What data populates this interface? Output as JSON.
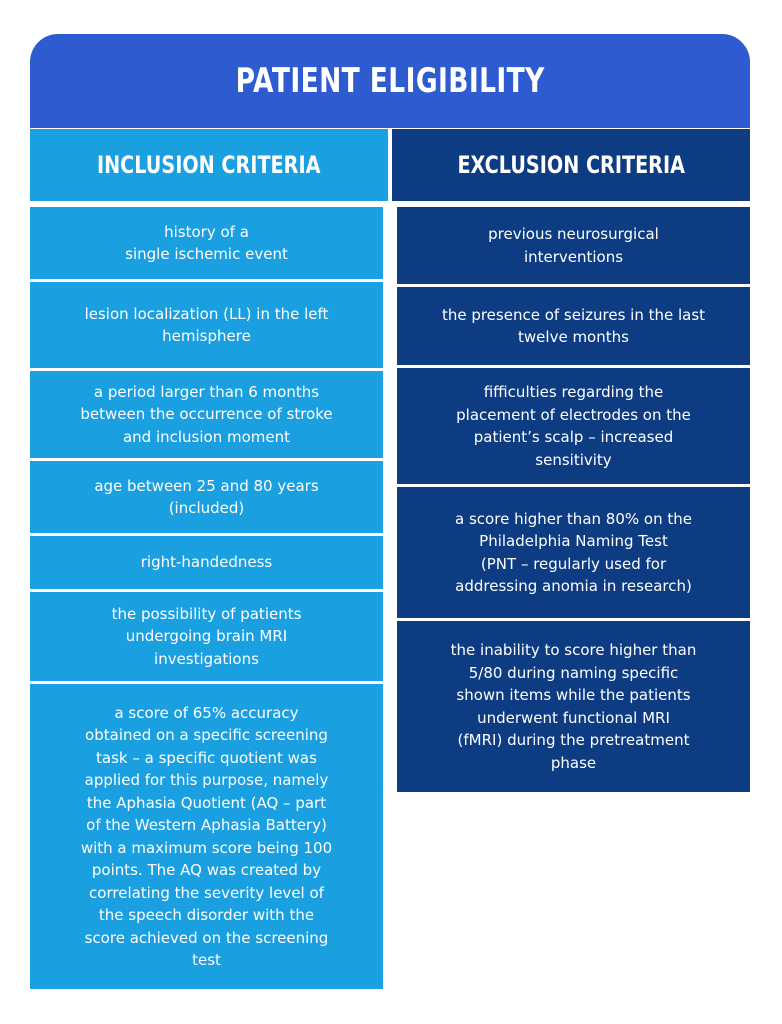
{
  "title": "PATIENT ELIGIBILITY",
  "inclusion": {
    "heading": "INCLUSION CRITERIA",
    "items": [
      "history of a\nsingle ischemic event",
      "lesion localization (LL) in the left\nhemisphere",
      "a period larger than 6 months\nbetween the occurrence of stroke\nand inclusion moment",
      "age between 25 and 80 years\n(included)",
      "right-handedness",
      "the possibility of patients\nundergoing brain MRI\ninvestigations",
      "a score of 65% accuracy\nobtained on a specific screening\ntask – a specific quotient was\napplied for this purpose, namely\nthe Aphasia Quotient (AQ – part\nof the Western Aphasia Battery)\nwith a maximum score being 100\npoints. The AQ was created by\ncorrelating the severity level of\nthe speech disorder with the\nscore achieved on the screening\ntest"
    ]
  },
  "exclusion": {
    "heading": "EXCLUSION CRITERIA",
    "items": [
      "previous neurosurgical\ninterventions",
      "the presence of seizures in the last\ntwelve months",
      "fifficulties regarding the\nplacement of electrodes on the\npatient’s scalp – increased\nsensitivity",
      "a score higher than 80% on the\nPhiladelphia Naming Test\n(PNT – regularly used for\naddressing anomia in research)",
      "the inability to score higher than\n5/80 during naming specific\nshown items while the patients\nunderwent functional MRI\n(fMRI) during the pretreatment\nphase"
    ]
  },
  "colors": {
    "header": "#2f5bd1",
    "inclusion": "#1a9fe0",
    "exclusion": "#0d3c82"
  }
}
